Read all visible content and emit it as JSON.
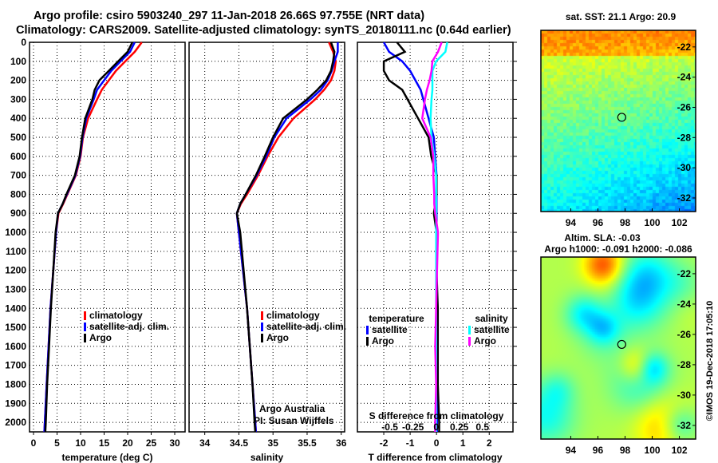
{
  "title_line1": "Argo profile: csiro 5903240_297 11-Jan-2018 26.66S 97.755E (NRT data)",
  "title_line2": "Climatology: CARS2009. Satellite-adjusted climatology: synTS_20180111.nc (0.64d earlier)",
  "colors": {
    "argo": "#000000",
    "climatology": "#ff0000",
    "satellite": "#0000ff",
    "sal_satellite": "#00ffff",
    "sal_argo": "#ff00ff"
  },
  "chart_data": [
    {
      "type": "line",
      "name": "temperature-profile",
      "xlabel": "temperature (deg C)",
      "ylabel": "",
      "xlim": [
        -0.85,
        32.2
      ],
      "ylim": [
        2050,
        0
      ],
      "xticks": [
        "0",
        "5",
        "10",
        "15",
        "20",
        "25",
        "30"
      ],
      "xtick_values": [
        0,
        5,
        10,
        15,
        20,
        25,
        30
      ],
      "yticks": [
        0,
        100,
        200,
        300,
        400,
        500,
        600,
        700,
        800,
        900,
        1000,
        1100,
        1200,
        1300,
        1400,
        1500,
        1600,
        1700,
        1800,
        1900,
        2000
      ],
      "depth": [
        0,
        50,
        100,
        150,
        200,
        250,
        300,
        400,
        500,
        600,
        700,
        800,
        850,
        900,
        1000,
        1200,
        1400,
        1600,
        1800,
        2000,
        2050
      ],
      "series": [
        {
          "name": "climatology",
          "color": "#ff0000",
          "values": [
            23,
            21.5,
            19.5,
            17.5,
            16,
            14.5,
            13.5,
            11.6,
            10.5,
            10,
            9,
            7.2,
            6.3,
            5.3,
            4.8,
            4.2,
            3.6,
            3.2,
            2.8,
            2.4,
            2.3
          ]
        },
        {
          "name": "satellite-adj. clim.",
          "color": "#0000ff",
          "values": [
            21.5,
            20.5,
            18.5,
            16.5,
            15,
            13.5,
            12.8,
            11.2,
            10.4,
            9.9,
            8.9,
            7.1,
            6.2,
            5.2,
            4.8,
            4.2,
            3.6,
            3.2,
            2.8,
            2.4,
            2.3
          ]
        },
        {
          "name": "Argo",
          "color": "#000000",
          "values": [
            21,
            20,
            18,
            16,
            14,
            13,
            12.5,
            11,
            10.3,
            9.8,
            8.8,
            7.0,
            6.2,
            5.2,
            4.7,
            4.2,
            3.7,
            3.3,
            2.9,
            2.6,
            2.5
          ]
        }
      ],
      "legend": [
        "climatology",
        "satellite-adj. clim.",
        "Argo"
      ]
    },
    {
      "type": "line",
      "name": "salinity-profile",
      "xlabel": "salinity",
      "xlim": [
        33.77,
        36.05
      ],
      "ylim": [
        2050,
        0
      ],
      "xticks": [
        "34",
        "34.5",
        "35",
        "35.5",
        "36"
      ],
      "xtick_values": [
        34,
        34.5,
        35,
        35.5,
        36
      ],
      "depth": [
        0,
        50,
        100,
        150,
        200,
        250,
        300,
        400,
        500,
        600,
        700,
        800,
        850,
        900,
        1000,
        1200,
        1400,
        1600,
        1800,
        2000,
        2050
      ],
      "series": [
        {
          "name": "climatology",
          "color": "#ff0000",
          "values": [
            35.82,
            35.88,
            35.92,
            35.9,
            35.85,
            35.75,
            35.62,
            35.3,
            35.08,
            34.92,
            34.78,
            34.62,
            34.53,
            34.47,
            34.5,
            34.56,
            34.62,
            34.66,
            34.7,
            34.74,
            34.75
          ]
        },
        {
          "name": "satellite-adj. clim.",
          "color": "#0000ff",
          "values": [
            35.95,
            35.95,
            35.9,
            35.86,
            35.8,
            35.7,
            35.55,
            35.2,
            35.02,
            34.9,
            34.76,
            34.6,
            34.52,
            34.47,
            34.5,
            34.56,
            34.62,
            34.66,
            34.7,
            34.74,
            34.75
          ]
        },
        {
          "name": "Argo",
          "color": "#000000",
          "values": [
            35.85,
            35.9,
            35.88,
            35.85,
            35.78,
            35.65,
            35.5,
            35.15,
            35.0,
            34.88,
            34.75,
            34.6,
            34.52,
            34.47,
            34.52,
            34.57,
            34.62,
            34.66,
            34.7,
            34.73,
            34.74
          ]
        }
      ],
      "legend": [
        "climatology",
        "satellite-adj. clim.",
        "Argo"
      ],
      "annotation": [
        "Argo Australia",
        "PI: Susan Wijffels"
      ]
    },
    {
      "type": "line",
      "name": "difference-profile",
      "xlabel": "T difference from climatology",
      "xlabel_top": "S difference from climatology",
      "xlim": [
        -3.0,
        2.9
      ],
      "xlim_s": [
        -0.85,
        0.83
      ],
      "ylim": [
        2050,
        0
      ],
      "xticks": [
        "-2",
        "-1",
        "0",
        "1",
        "2"
      ],
      "xtick_values": [
        -2,
        -1,
        0,
        1,
        2
      ],
      "sticks": [
        "-0.5",
        "-0.25",
        "0",
        "0.25",
        "0.5"
      ],
      "stick_values": [
        -0.5,
        -0.25,
        0,
        0.25,
        0.5
      ],
      "depth": [
        0,
        50,
        100,
        150,
        200,
        250,
        300,
        400,
        500,
        600,
        700,
        800,
        850,
        900,
        1000,
        1200,
        1400,
        1600,
        1800,
        2000,
        2050
      ],
      "series": [
        {
          "name": "T satellite",
          "axis": "T",
          "color": "#0000ff",
          "values": [
            -2,
            -1.8,
            -1.3,
            -1,
            -0.8,
            -0.6,
            -0.5,
            -0.3,
            -0.1,
            -0.05,
            0,
            0,
            0,
            0,
            0,
            0,
            0.02,
            0.02,
            0.02,
            0.02,
            0.02
          ]
        },
        {
          "name": "T Argo",
          "axis": "T",
          "color": "#000000",
          "values": [
            -1.5,
            -1.2,
            -2,
            -2,
            -1.8,
            -1.3,
            -1.1,
            -0.7,
            -0.3,
            -0.2,
            0,
            0,
            -0.05,
            -0.1,
            0,
            0,
            0.05,
            0.05,
            0.05,
            0.1,
            0.1
          ]
        },
        {
          "name": "S satellite",
          "axis": "S",
          "color": "#00ffff",
          "values": [
            0.12,
            0.1,
            0,
            -0.04,
            -0.04,
            -0.04,
            -0.05,
            -0.06,
            -0.05,
            -0.02,
            0,
            0,
            0,
            0,
            0,
            0,
            0,
            0,
            0,
            0,
            0
          ]
        },
        {
          "name": "S Argo",
          "axis": "S",
          "color": "#ff00ff",
          "values": [
            0.06,
            0.02,
            -0.04,
            -0.05,
            -0.07,
            -0.1,
            -0.12,
            -0.15,
            -0.06,
            -0.03,
            -0.03,
            -0.02,
            -0.02,
            -0.01,
            0.02,
            0.01,
            0,
            -0.01,
            0,
            -0.01,
            -0.01
          ]
        }
      ],
      "legend_t_title": "temperature",
      "legend_t": [
        "satellite",
        "Argo"
      ],
      "legend_s_title": "salinity",
      "legend_s": [
        "satellite",
        "Argo"
      ]
    },
    {
      "type": "heatmap",
      "name": "sst-map",
      "title": "sat. SST: 21.1 Argo: 20.9",
      "xlim": [
        91.8,
        103.2
      ],
      "ylim": [
        -32.9,
        -20.9
      ],
      "xticks": [
        "94",
        "96",
        "98",
        "100",
        "102"
      ],
      "xtick_values": [
        94,
        96,
        98,
        100,
        102
      ],
      "yticks": [
        "-22",
        "-24",
        "-26",
        "-28",
        "-30",
        "-32"
      ],
      "ytick_values": [
        -22,
        -24,
        -26,
        -28,
        -30,
        -32
      ],
      "marker": {
        "lon": 97.755,
        "lat": -26.66
      }
    },
    {
      "type": "heatmap",
      "name": "sla-map",
      "title": "Altim. SLA: -0.03",
      "subtitle": "Argo h1000: -0.091 h2000: -0.086",
      "xlim": [
        91.8,
        103.2
      ],
      "ylim": [
        -32.9,
        -20.9
      ],
      "xticks": [
        "94",
        "96",
        "98",
        "100",
        "102"
      ],
      "xtick_values": [
        94,
        96,
        98,
        100,
        102
      ],
      "yticks": [
        "-22",
        "-24",
        "-26",
        "-28",
        "-30",
        "-32"
      ],
      "ytick_values": [
        -22,
        -24,
        -26,
        -28,
        -30,
        -32
      ],
      "marker": {
        "lon": 97.755,
        "lat": -26.66
      }
    }
  ],
  "credit": "©IMOS 19-Dec-2018 17:05:10"
}
